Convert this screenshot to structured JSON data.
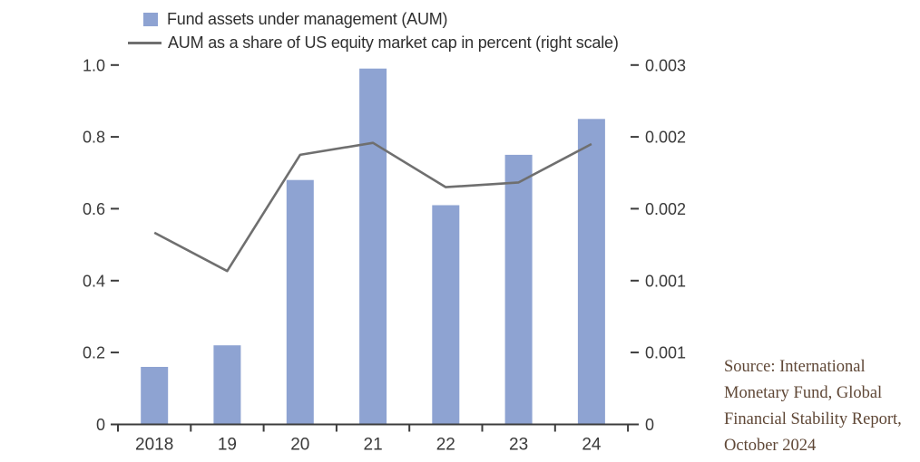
{
  "legend": {
    "bar_label": "Fund assets under management (AUM)",
    "line_label": "AUM as a share of US equity market cap in percent (right scale)"
  },
  "source_note": {
    "lines": [
      "Source: International",
      "Monetary Fund, Global",
      "Financial Stability Report,",
      "October 2024"
    ]
  },
  "chart_data": {
    "type": "bar+line",
    "categories": [
      "2018",
      "19",
      "20",
      "21",
      "22",
      "23",
      "24"
    ],
    "series": [
      {
        "name": "Fund assets under management (AUM)",
        "type": "bar",
        "axis": "left",
        "values": [
          0.16,
          0.22,
          0.68,
          0.99,
          0.61,
          0.75,
          0.85
        ]
      },
      {
        "name": "AUM as a share of US equity market cap in percent (right scale)",
        "type": "line",
        "axis": "right",
        "values": [
          0.0016,
          0.00128,
          0.00225,
          0.00235,
          0.00198,
          0.00202,
          0.00234
        ]
      }
    ],
    "left_axis": {
      "min": 0,
      "max": 1.0,
      "tick_labels_bottom_to_top": [
        "0",
        "0.2",
        "0.4",
        "0.6",
        "0.8",
        "1.0"
      ]
    },
    "right_axis": {
      "min": 0,
      "max": 0.003,
      "tick_labels_bottom_to_top": [
        "0",
        "0.001",
        "0.001",
        "0.002",
        "0.002",
        "0.003"
      ]
    },
    "grid": false,
    "legend_position": "top-left",
    "colors": {
      "bar": "#8EA3D2",
      "line": "#6F6F6F",
      "axis": "#3C3C3C",
      "tick_text": "#3A3A3A",
      "source_text": "#5F4736"
    }
  }
}
